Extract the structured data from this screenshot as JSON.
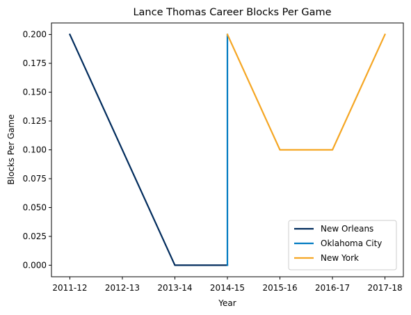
{
  "chart_data": {
    "type": "line",
    "title": "Lance Thomas Career Blocks Per Game",
    "xlabel": "Year",
    "ylabel": "Blocks Per Game",
    "categories": [
      "2011-12",
      "2012-13",
      "2013-14",
      "2014-15",
      "2015-16",
      "2016-17",
      "2017-18"
    ],
    "ylim": [
      -0.01,
      0.21
    ],
    "yticks": [
      "0.000",
      "0.025",
      "0.050",
      "0.075",
      "0.100",
      "0.125",
      "0.150",
      "0.175",
      "0.200"
    ],
    "grid": false,
    "legend_position": "lower-right",
    "series": [
      {
        "name": "New Orleans",
        "color": "#002b5c",
        "points": [
          {
            "x": "2011-12",
            "y": 0.2
          },
          {
            "x": "2013-14",
            "y": 0.0
          },
          {
            "x": "2014-15",
            "y": 0.0
          }
        ]
      },
      {
        "name": "Oklahoma City",
        "color": "#007ac1",
        "points": [
          {
            "x": "2014-15",
            "y": 0.0
          },
          {
            "x": "2014-15",
            "y": 0.2
          }
        ]
      },
      {
        "name": "New York",
        "color": "#f5a623",
        "points": [
          {
            "x": "2014-15",
            "y": 0.2
          },
          {
            "x": "2015-16",
            "y": 0.1
          },
          {
            "x": "2016-17",
            "y": 0.1
          },
          {
            "x": "2017-18",
            "y": 0.2
          }
        ]
      }
    ]
  }
}
